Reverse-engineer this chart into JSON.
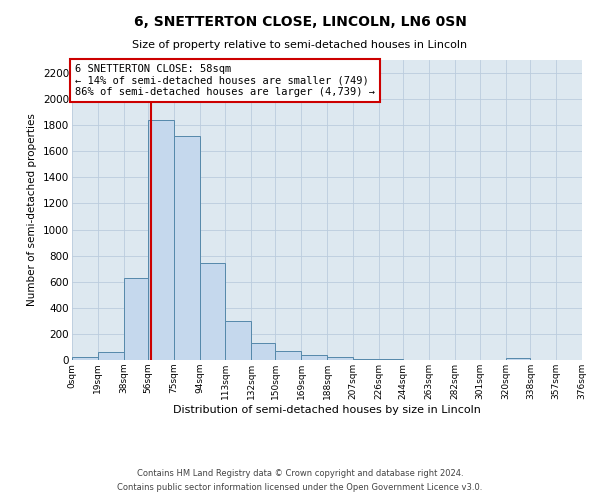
{
  "title": "6, SNETTERTON CLOSE, LINCOLN, LN6 0SN",
  "subtitle": "Size of property relative to semi-detached houses in Lincoln",
  "xlabel": "Distribution of semi-detached houses by size in Lincoln",
  "ylabel": "Number of semi-detached properties",
  "bar_color": "#c5d8ed",
  "bar_edge_color": "#5588aa",
  "background_color": "#ffffff",
  "grid_color": "#bbccdd",
  "plot_bg_color": "#dde8f0",
  "property_line_x": 58,
  "property_line_color": "#cc0000",
  "annotation_line1": "6 SNETTERTON CLOSE: 58sqm",
  "annotation_line2": "← 14% of semi-detached houses are smaller (749)",
  "annotation_line3": "86% of semi-detached houses are larger (4,739) →",
  "annotation_box_color": "#ffffff",
  "annotation_border_color": "#cc0000",
  "bin_edges": [
    0,
    19,
    38,
    56,
    75,
    94,
    113,
    132,
    150,
    169,
    188,
    207,
    226,
    244,
    263,
    282,
    301,
    320,
    338,
    357,
    376
  ],
  "bin_heights": [
    20,
    60,
    630,
    1840,
    1720,
    740,
    300,
    130,
    70,
    40,
    20,
    5,
    5,
    3,
    2,
    2,
    2,
    15,
    2,
    2
  ],
  "xlim": [
    0,
    376
  ],
  "ylim": [
    0,
    2300
  ],
  "yticks": [
    0,
    200,
    400,
    600,
    800,
    1000,
    1200,
    1400,
    1600,
    1800,
    2000,
    2200
  ],
  "xtick_labels": [
    "0sqm",
    "19sqm",
    "38sqm",
    "56sqm",
    "75sqm",
    "94sqm",
    "113sqm",
    "132sqm",
    "150sqm",
    "169sqm",
    "188sqm",
    "207sqm",
    "226sqm",
    "244sqm",
    "263sqm",
    "282sqm",
    "301sqm",
    "320sqm",
    "338sqm",
    "357sqm",
    "376sqm"
  ],
  "footer_line1": "Contains HM Land Registry data © Crown copyright and database right 2024.",
  "footer_line2": "Contains public sector information licensed under the Open Government Licence v3.0."
}
